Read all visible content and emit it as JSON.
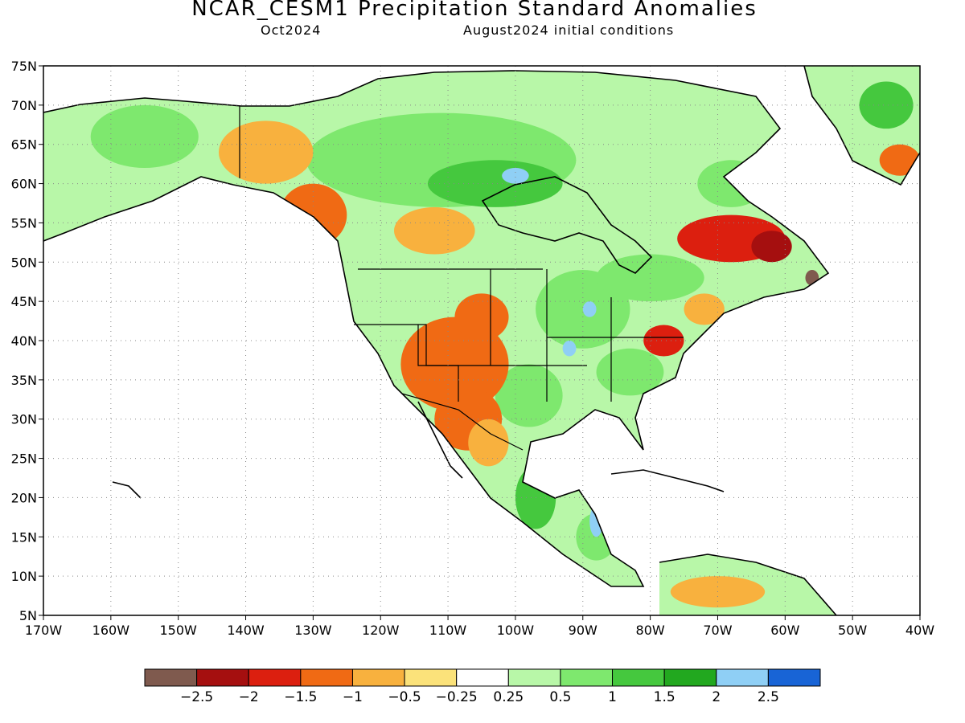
{
  "title": "NCAR_CESM1 Precipitation Standard Anomalies",
  "subtitle_left": "Oct2024",
  "subtitle_right": "August2024 initial conditions",
  "map": {
    "lon_range": [
      -170,
      -40
    ],
    "lat_range": [
      5,
      75
    ],
    "lat_ticks": [
      "75N",
      "70N",
      "65N",
      "60N",
      "55N",
      "50N",
      "45N",
      "40N",
      "35N",
      "30N",
      "25N",
      "20N",
      "15N",
      "10N",
      "5N"
    ],
    "lon_ticks": [
      "170W",
      "160W",
      "150W",
      "140W",
      "130W",
      "120W",
      "110W",
      "100W",
      "90W",
      "80W",
      "70W",
      "60W",
      "50W",
      "40W"
    ],
    "grid": true
  },
  "colorbar": {
    "colors": [
      "#7f5a4e",
      "#a50f0f",
      "#dc1f0f",
      "#f06a14",
      "#f8b13e",
      "#fbe27a",
      "#ffffff",
      "#b8f7a8",
      "#7ee86e",
      "#45c83e",
      "#22a81f",
      "#8fcff5",
      "#1864d6"
    ],
    "labels": [
      "−2.5",
      "−2",
      "−1.5",
      "−1",
      "−0.5",
      "−0.25",
      "0.25",
      "0.5",
      "1",
      "1.5",
      "2",
      "2.5"
    ]
  },
  "regions": [
    {
      "level": "green",
      "color": "#7ee86e",
      "lon": -111,
      "lat": 63,
      "rx": 20,
      "ry": 6
    },
    {
      "level": "green",
      "color": "#45c83e",
      "lon": -103,
      "lat": 60,
      "rx": 10,
      "ry": 3
    },
    {
      "level": "green",
      "color": "#7ee86e",
      "lon": -90,
      "lat": 44,
      "rx": 7,
      "ry": 5
    },
    {
      "level": "green",
      "color": "#7ee86e",
      "lon": -83,
      "lat": 36,
      "rx": 5,
      "ry": 3
    },
    {
      "level": "green",
      "color": "#7ee86e",
      "lon": -98,
      "lat": 33,
      "rx": 5,
      "ry": 4
    },
    {
      "level": "green",
      "color": "#45c83e",
      "lon": -97,
      "lat": 20,
      "rx": 3,
      "ry": 4
    },
    {
      "level": "green",
      "color": "#7ee86e",
      "lon": -88,
      "lat": 15,
      "rx": 3,
      "ry": 3
    },
    {
      "level": "green",
      "color": "#7ee86e",
      "lon": -155,
      "lat": 66,
      "rx": 8,
      "ry": 4
    },
    {
      "level": "green",
      "color": "#45c83e",
      "lon": -45,
      "lat": 70,
      "rx": 4,
      "ry": 3
    },
    {
      "level": "green",
      "color": "#7ee86e",
      "lon": -80,
      "lat": 48,
      "rx": 8,
      "ry": 3
    },
    {
      "level": "green",
      "color": "#7ee86e",
      "lon": -68,
      "lat": 60,
      "rx": 5,
      "ry": 3
    },
    {
      "level": "orange",
      "color": "#f8b13e",
      "lon": -137,
      "lat": 64,
      "rx": 7,
      "ry": 4
    },
    {
      "level": "orange",
      "color": "#f06a14",
      "lon": -130,
      "lat": 56,
      "rx": 5,
      "ry": 4
    },
    {
      "level": "orange",
      "color": "#f8b13e",
      "lon": -112,
      "lat": 54,
      "rx": 6,
      "ry": 3
    },
    {
      "level": "orange",
      "color": "#f06a14",
      "lon": -109,
      "lat": 37,
      "rx": 8,
      "ry": 6
    },
    {
      "level": "orange",
      "color": "#f06a14",
      "lon": -107,
      "lat": 30,
      "rx": 5,
      "ry": 4
    },
    {
      "level": "orange",
      "color": "#f8b13e",
      "lon": -104,
      "lat": 27,
      "rx": 3,
      "ry": 3
    },
    {
      "level": "orange",
      "color": "#f06a14",
      "lon": -105,
      "lat": 43,
      "rx": 4,
      "ry": 3
    },
    {
      "level": "red",
      "color": "#dc1f0f",
      "lon": -78,
      "lat": 40,
      "rx": 3,
      "ry": 2
    },
    {
      "level": "orange",
      "color": "#f8b13e",
      "lon": -72,
      "lat": 44,
      "rx": 3,
      "ry": 2
    },
    {
      "level": "red",
      "color": "#dc1f0f",
      "lon": -68,
      "lat": 53,
      "rx": 8,
      "ry": 3
    },
    {
      "level": "red",
      "color": "#a50f0f",
      "lon": -62,
      "lat": 52,
      "rx": 3,
      "ry": 2
    },
    {
      "level": "brown",
      "color": "#7f5a4e",
      "lon": -56,
      "lat": 48,
      "rx": 1,
      "ry": 1
    },
    {
      "level": "orange",
      "color": "#f06a14",
      "lon": -43,
      "lat": 63,
      "rx": 3,
      "ry": 2
    },
    {
      "level": "orange",
      "color": "#f8b13e",
      "lon": -70,
      "lat": 8,
      "rx": 7,
      "ry": 2
    },
    {
      "level": "blue",
      "color": "#8fcff5",
      "lon": -89,
      "lat": 44,
      "rx": 1,
      "ry": 1
    },
    {
      "level": "blue",
      "color": "#8fcff5",
      "lon": -92,
      "lat": 39,
      "rx": 1,
      "ry": 1
    },
    {
      "level": "blue",
      "color": "#8fcff5",
      "lon": -100,
      "lat": 61,
      "rx": 2,
      "ry": 1
    },
    {
      "level": "blue",
      "color": "#8fcff5",
      "lon": -88,
      "lat": 17,
      "rx": 1,
      "ry": 2
    }
  ]
}
